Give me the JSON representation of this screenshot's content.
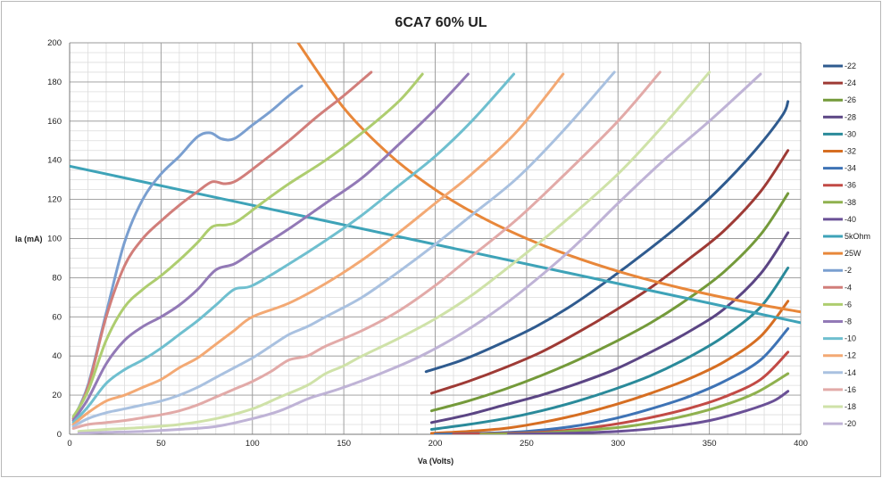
{
  "chart_data": {
    "type": "line",
    "title": "6CA7 60% UL",
    "xlabel": "Va (Volts)",
    "ylabel": "Ia (mA)",
    "xlim": [
      0,
      400
    ],
    "ylim": [
      0,
      200
    ],
    "x_major_ticks": [
      0,
      50,
      100,
      150,
      200,
      250,
      300,
      350,
      400
    ],
    "y_major_ticks": [
      0,
      20,
      40,
      60,
      80,
      100,
      120,
      140,
      160,
      180,
      200
    ],
    "x_minor_step": 10,
    "y_minor_step": 5,
    "grid": true,
    "legend_position": "right",
    "series": [
      {
        "name": "-22",
        "color": "#2f5b8f",
        "points": [
          [
            195,
            32
          ],
          [
            215,
            38
          ],
          [
            235,
            46
          ],
          [
            255,
            55
          ],
          [
            275,
            66
          ],
          [
            295,
            79
          ],
          [
            315,
            93
          ],
          [
            335,
            108
          ],
          [
            355,
            125
          ],
          [
            375,
            145
          ],
          [
            390,
            163
          ],
          [
            393,
            170
          ]
        ]
      },
      {
        "name": "-24",
        "color": "#9e3a35",
        "points": [
          [
            198,
            21
          ],
          [
            218,
            27
          ],
          [
            238,
            34
          ],
          [
            258,
            42
          ],
          [
            278,
            52
          ],
          [
            298,
            63
          ],
          [
            318,
            75
          ],
          [
            338,
            89
          ],
          [
            358,
            104
          ],
          [
            378,
            124
          ],
          [
            393,
            145
          ]
        ]
      },
      {
        "name": "-26",
        "color": "#749a3a",
        "points": [
          [
            198,
            12
          ],
          [
            218,
            17
          ],
          [
            238,
            23
          ],
          [
            258,
            30
          ],
          [
            278,
            38
          ],
          [
            298,
            47
          ],
          [
            318,
            57
          ],
          [
            338,
            69
          ],
          [
            358,
            83
          ],
          [
            378,
            102
          ],
          [
            393,
            123
          ]
        ]
      },
      {
        "name": "-28",
        "color": "#5b4584",
        "points": [
          [
            198,
            6
          ],
          [
            218,
            10
          ],
          [
            238,
            15
          ],
          [
            258,
            20
          ],
          [
            278,
            26
          ],
          [
            298,
            33
          ],
          [
            318,
            42
          ],
          [
            338,
            52
          ],
          [
            358,
            64
          ],
          [
            378,
            82
          ],
          [
            393,
            103
          ]
        ]
      },
      {
        "name": "-30",
        "color": "#2a8a9a",
        "points": [
          [
            198,
            2.5
          ],
          [
            218,
            5
          ],
          [
            238,
            8
          ],
          [
            258,
            12
          ],
          [
            278,
            17
          ],
          [
            298,
            23
          ],
          [
            318,
            30
          ],
          [
            338,
            39
          ],
          [
            358,
            50
          ],
          [
            378,
            65
          ],
          [
            393,
            85
          ]
        ]
      },
      {
        "name": "-32",
        "color": "#d66e22",
        "points": [
          [
            198,
            0.5
          ],
          [
            218,
            1.5
          ],
          [
            238,
            3
          ],
          [
            258,
            6
          ],
          [
            278,
            10
          ],
          [
            298,
            15
          ],
          [
            318,
            21
          ],
          [
            338,
            28
          ],
          [
            358,
            37
          ],
          [
            378,
            50
          ],
          [
            393,
            68
          ]
        ]
      },
      {
        "name": "-34",
        "color": "#3e73b5",
        "points": [
          [
            200,
            0
          ],
          [
            225,
            0.5
          ],
          [
            250,
            1.5
          ],
          [
            275,
            4
          ],
          [
            298,
            8
          ],
          [
            318,
            13
          ],
          [
            338,
            19
          ],
          [
            358,
            27
          ],
          [
            378,
            38
          ],
          [
            393,
            54
          ]
        ]
      },
      {
        "name": "-36",
        "color": "#c24a45",
        "points": [
          [
            210,
            0
          ],
          [
            240,
            0.5
          ],
          [
            265,
            1.5
          ],
          [
            290,
            4
          ],
          [
            315,
            8
          ],
          [
            338,
            13
          ],
          [
            358,
            19
          ],
          [
            378,
            28
          ],
          [
            393,
            42
          ]
        ]
      },
      {
        "name": "-38",
        "color": "#8fb14e",
        "points": [
          [
            225,
            0
          ],
          [
            255,
            0.5
          ],
          [
            280,
            2
          ],
          [
            305,
            4
          ],
          [
            330,
            8
          ],
          [
            355,
            14
          ],
          [
            375,
            21
          ],
          [
            393,
            31
          ]
        ]
      },
      {
        "name": "-40",
        "color": "#6a5096",
        "points": [
          [
            240,
            0
          ],
          [
            270,
            0.5
          ],
          [
            300,
            1.5
          ],
          [
            325,
            3.5
          ],
          [
            350,
            7
          ],
          [
            370,
            12
          ],
          [
            385,
            17
          ],
          [
            393,
            22
          ]
        ]
      },
      {
        "name": "5kOhm",
        "color": "#3ea3b8",
        "points": [
          [
            0,
            137
          ],
          [
            400,
            57
          ]
        ]
      },
      {
        "name": "25W",
        "color": "#e8873a",
        "points": [
          [
            125,
            200
          ],
          [
            150,
            166.7
          ],
          [
            175,
            142.9
          ],
          [
            200,
            125
          ],
          [
            225,
            111.1
          ],
          [
            250,
            100
          ],
          [
            275,
            90.9
          ],
          [
            300,
            83.3
          ],
          [
            325,
            76.9
          ],
          [
            350,
            71.4
          ],
          [
            375,
            66.7
          ],
          [
            400,
            62.5
          ]
        ]
      },
      {
        "name": "-2",
        "color": "#7a9fd0",
        "points": [
          [
            2,
            8
          ],
          [
            10,
            25
          ],
          [
            20,
            62
          ],
          [
            30,
            98
          ],
          [
            40,
            120
          ],
          [
            50,
            133
          ],
          [
            60,
            142
          ],
          [
            70,
            152
          ],
          [
            77,
            154
          ],
          [
            83,
            151
          ],
          [
            90,
            151
          ],
          [
            100,
            158
          ],
          [
            110,
            165
          ],
          [
            120,
            173
          ],
          [
            127,
            178
          ]
        ]
      },
      {
        "name": "-4",
        "color": "#d17e7a",
        "points": [
          [
            2,
            8
          ],
          [
            10,
            24
          ],
          [
            20,
            60
          ],
          [
            30,
            86
          ],
          [
            40,
            100
          ],
          [
            50,
            109
          ],
          [
            60,
            117
          ],
          [
            70,
            124
          ],
          [
            78,
            129
          ],
          [
            85,
            128
          ],
          [
            92,
            130
          ],
          [
            105,
            139
          ],
          [
            120,
            150
          ],
          [
            135,
            162
          ],
          [
            150,
            173
          ],
          [
            165,
            185
          ]
        ]
      },
      {
        "name": "-6",
        "color": "#aecd6f",
        "points": [
          [
            2,
            9
          ],
          [
            10,
            22
          ],
          [
            20,
            48
          ],
          [
            30,
            65
          ],
          [
            40,
            74
          ],
          [
            50,
            81
          ],
          [
            60,
            89
          ],
          [
            70,
            98
          ],
          [
            78,
            106
          ],
          [
            86,
            107
          ],
          [
            92,
            109
          ],
          [
            105,
            118
          ],
          [
            120,
            128
          ],
          [
            140,
            140
          ],
          [
            160,
            154
          ],
          [
            180,
            170
          ],
          [
            193,
            184
          ]
        ]
      },
      {
        "name": "-8",
        "color": "#9279b6",
        "points": [
          [
            2,
            7
          ],
          [
            10,
            18
          ],
          [
            20,
            36
          ],
          [
            30,
            48
          ],
          [
            40,
            55
          ],
          [
            50,
            60
          ],
          [
            60,
            66
          ],
          [
            70,
            74
          ],
          [
            80,
            84
          ],
          [
            90,
            87
          ],
          [
            100,
            93
          ],
          [
            120,
            105
          ],
          [
            140,
            118
          ],
          [
            160,
            131
          ],
          [
            180,
            148
          ],
          [
            200,
            166
          ],
          [
            218,
            184
          ]
        ]
      },
      {
        "name": "-10",
        "color": "#6fbfcf",
        "points": [
          [
            2,
            6
          ],
          [
            10,
            14
          ],
          [
            20,
            26
          ],
          [
            30,
            33
          ],
          [
            40,
            38
          ],
          [
            50,
            44
          ],
          [
            60,
            51
          ],
          [
            70,
            58
          ],
          [
            80,
            66
          ],
          [
            90,
            74
          ],
          [
            100,
            76
          ],
          [
            120,
            87
          ],
          [
            140,
            99
          ],
          [
            160,
            112
          ],
          [
            180,
            127
          ],
          [
            200,
            142
          ],
          [
            220,
            160
          ],
          [
            243,
            184
          ]
        ]
      },
      {
        "name": "-12",
        "color": "#f3a974",
        "points": [
          [
            2,
            5
          ],
          [
            10,
            11
          ],
          [
            20,
            17
          ],
          [
            30,
            20
          ],
          [
            40,
            24
          ],
          [
            50,
            28
          ],
          [
            60,
            34
          ],
          [
            70,
            39
          ],
          [
            80,
            46
          ],
          [
            90,
            53
          ],
          [
            100,
            60
          ],
          [
            120,
            67
          ],
          [
            140,
            77
          ],
          [
            160,
            89
          ],
          [
            180,
            103
          ],
          [
            200,
            118
          ],
          [
            220,
            133
          ],
          [
            245,
            155
          ],
          [
            270,
            184
          ]
        ]
      },
      {
        "name": "-14",
        "color": "#a9c1e0",
        "points": [
          [
            2,
            4
          ],
          [
            10,
            8
          ],
          [
            20,
            11
          ],
          [
            30,
            13
          ],
          [
            40,
            15
          ],
          [
            50,
            17
          ],
          [
            60,
            20
          ],
          [
            70,
            24
          ],
          [
            80,
            29
          ],
          [
            90,
            34
          ],
          [
            100,
            39
          ],
          [
            110,
            45
          ],
          [
            120,
            51
          ],
          [
            130,
            55
          ],
          [
            140,
            60
          ],
          [
            160,
            70
          ],
          [
            180,
            83
          ],
          [
            200,
            97
          ],
          [
            220,
            112
          ],
          [
            245,
            131
          ],
          [
            270,
            155
          ],
          [
            298,
            185
          ]
        ]
      },
      {
        "name": "-16",
        "color": "#e2aaa8",
        "points": [
          [
            2,
            3
          ],
          [
            10,
            5
          ],
          [
            20,
            6
          ],
          [
            30,
            7
          ],
          [
            40,
            8.5
          ],
          [
            50,
            10
          ],
          [
            60,
            12
          ],
          [
            70,
            15
          ],
          [
            80,
            19
          ],
          [
            90,
            23
          ],
          [
            100,
            27
          ],
          [
            110,
            32
          ],
          [
            120,
            38
          ],
          [
            130,
            40
          ],
          [
            140,
            45
          ],
          [
            160,
            53
          ],
          [
            180,
            63
          ],
          [
            200,
            76
          ],
          [
            220,
            91
          ],
          [
            245,
            110
          ],
          [
            270,
            132
          ],
          [
            300,
            160
          ],
          [
            323,
            185
          ]
        ]
      },
      {
        "name": "-18",
        "color": "#cfe2a8",
        "points": [
          [
            5,
            1.5
          ],
          [
            20,
            2.5
          ],
          [
            40,
            3.5
          ],
          [
            60,
            5
          ],
          [
            80,
            8
          ],
          [
            100,
            13
          ],
          [
            115,
            19
          ],
          [
            130,
            25
          ],
          [
            140,
            31
          ],
          [
            150,
            35
          ],
          [
            160,
            40
          ],
          [
            180,
            49
          ],
          [
            200,
            59
          ],
          [
            220,
            71
          ],
          [
            245,
            89
          ],
          [
            270,
            108
          ],
          [
            300,
            133
          ],
          [
            325,
            158
          ],
          [
            350,
            185
          ]
        ]
      },
      {
        "name": "-20",
        "color": "#bfb3d6",
        "points": [
          [
            5,
            0.5
          ],
          [
            20,
            1
          ],
          [
            40,
            1.5
          ],
          [
            60,
            2.5
          ],
          [
            80,
            4
          ],
          [
            100,
            8
          ],
          [
            115,
            12
          ],
          [
            130,
            18
          ],
          [
            140,
            21
          ],
          [
            150,
            24
          ],
          [
            170,
            31
          ],
          [
            190,
            39
          ],
          [
            210,
            49
          ],
          [
            230,
            61
          ],
          [
            250,
            75
          ],
          [
            275,
            95
          ],
          [
            300,
            118
          ],
          [
            325,
            140
          ],
          [
            350,
            160
          ],
          [
            378,
            184
          ]
        ]
      }
    ]
  }
}
